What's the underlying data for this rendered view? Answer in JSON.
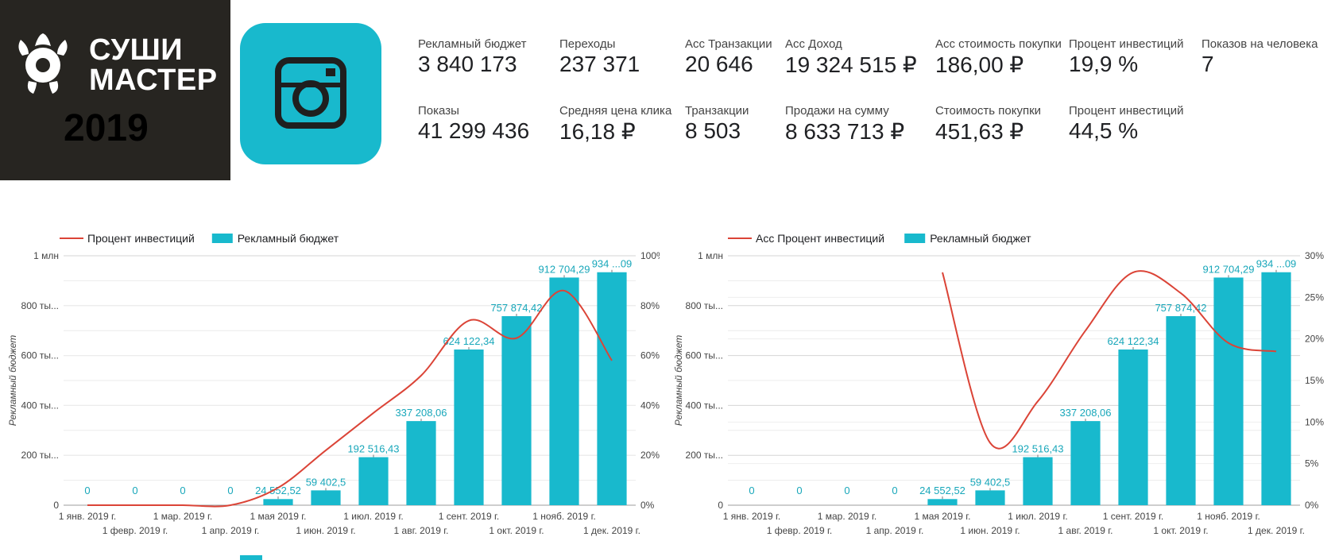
{
  "brand": {
    "line1": "СУШИ",
    "line2": "МАСТЕР",
    "year": "2019",
    "accent": "#18b9cd"
  },
  "platform_icon": "instagram-icon",
  "kpis": [
    {
      "label": "Рекламный бюджет",
      "value": "3 840 173"
    },
    {
      "label": "Переходы",
      "value": "237 371"
    },
    {
      "label": "Acc Транзакции",
      "value": "20 646"
    },
    {
      "label": "Acc Доход",
      "value": "19 324 515 ₽"
    },
    {
      "label": "Acc стоимость покупки",
      "value": "186,00 ₽"
    },
    {
      "label": "Процент инвестиций",
      "value": "19,9 %"
    },
    {
      "label": "Показов на человека",
      "value": "7"
    },
    {
      "label": "Показы",
      "value": "41 299 436"
    },
    {
      "label": "Средняя цена клика",
      "value": "16,18 ₽"
    },
    {
      "label": "Транзакции",
      "value": "8 503"
    },
    {
      "label": "Продажи на сумму",
      "value": "8 633 713 ₽"
    },
    {
      "label": "Стоимость покупки",
      "value": "451,63 ₽"
    },
    {
      "label": "Процент инвестиций",
      "value": "44,5 %"
    }
  ],
  "chart_data": [
    {
      "type": "bar",
      "categories": [
        "1 янв. 2019 г.",
        "1 февр. 2019 г.",
        "1 мар. 2019 г.",
        "1 апр. 2019 г.",
        "1 мая 2019 г.",
        "1 июн. 2019 г.",
        "1 июл. 2019 г.",
        "1 авг. 2019 г.",
        "1 сент. 2019 г.",
        "1 окт. 2019 г.",
        "1 нояб. 2019 г.",
        "1 дек. 2019 г."
      ],
      "ylabel": "Рекламный бюджет",
      "ylim": [
        0,
        1000000
      ],
      "y_ticks": [
        "0",
        "200 ты...",
        "400 ты...",
        "600 ты...",
        "800 ты...",
        "1 млн"
      ],
      "y2lim": [
        0,
        100
      ],
      "y2_ticks": [
        "0%",
        "20%",
        "40%",
        "60%",
        "80%",
        "100%"
      ],
      "grid": true,
      "legend_position": "top-left",
      "series": [
        {
          "name": "Процент инвестиций",
          "kind": "line",
          "color": "#db4437",
          "values": [
            0,
            0,
            0,
            0,
            7,
            22,
            37,
            52,
            74,
            67,
            86,
            58
          ]
        },
        {
          "name": "Рекламный бюджет",
          "kind": "bar",
          "color": "#18b9cd",
          "values": [
            0,
            0,
            0,
            0,
            24552.52,
            59402.5,
            192516.43,
            337208.06,
            624122.34,
            757874.42,
            912704.29,
            934000
          ],
          "labels": [
            "0",
            "0",
            "0",
            "0",
            "24 552,52",
            "59 402,5",
            "192 516,43",
            "337 208,06",
            "624 122,34",
            "757 874,42",
            "912 704,29",
            "934 ...09"
          ]
        }
      ]
    },
    {
      "type": "bar",
      "categories": [
        "1 янв. 2019 г.",
        "1 февр. 2019 г.",
        "1 мар. 2019 г.",
        "1 апр. 2019 г.",
        "1 мая 2019 г.",
        "1 июн. 2019 г.",
        "1 июл. 2019 г.",
        "1 авг. 2019 г.",
        "1 сент. 2019 г.",
        "1 окт. 2019 г.",
        "1 нояб. 2019 г.",
        "1 дек. 2019 г."
      ],
      "ylabel": "Рекламный бюджет",
      "ylim": [
        0,
        1000000
      ],
      "y_ticks": [
        "0",
        "200 ты...",
        "400 ты...",
        "600 ты...",
        "800 ты...",
        "1 млн"
      ],
      "y2lim": [
        0,
        30
      ],
      "y2_ticks": [
        "0%",
        "5%",
        "10%",
        "15%",
        "20%",
        "25%",
        "30%"
      ],
      "grid": true,
      "legend_position": "top-left",
      "series": [
        {
          "name": "Acc Процент инвестиций",
          "kind": "line",
          "color": "#db4437",
          "values": [
            null,
            null,
            null,
            null,
            28,
            7.5,
            12.5,
            21,
            28,
            25.5,
            19.5,
            18.5
          ]
        },
        {
          "name": "Рекламный бюджет",
          "kind": "bar",
          "color": "#18b9cd",
          "values": [
            0,
            0,
            0,
            0,
            24552.52,
            59402.5,
            192516.43,
            337208.06,
            624122.34,
            757874.42,
            912704.29,
            934000
          ],
          "labels": [
            "0",
            "0",
            "0",
            "0",
            "24 552,52",
            "59 402,5",
            "192 516,43",
            "337 208,06",
            "624 122,34",
            "757 874,42",
            "912 704,29",
            "934 ...09"
          ]
        }
      ]
    }
  ]
}
